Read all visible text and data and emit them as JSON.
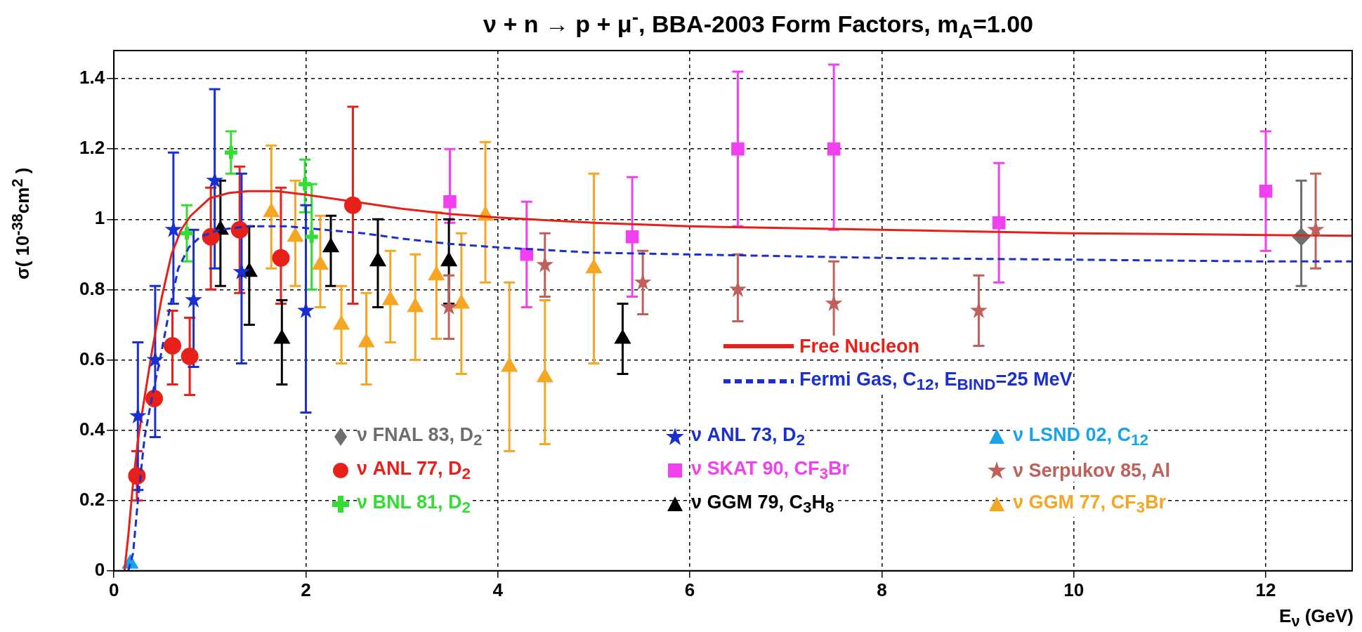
{
  "chart_data": {
    "type": "scatter",
    "title": "ν + n → p + μ$^{-}$, BBA-2003 Form Factors, m$_{A}$=1.00",
    "xlabel": "E$_{ν}$ (GeV)",
    "ylabel": "σ( 10$^{-38}$cm$^{2}$ )",
    "xlim": [
      0,
      12.9
    ],
    "xticks": [
      0,
      2,
      4,
      6,
      8,
      10,
      12
    ],
    "ylim": [
      0,
      1.48
    ],
    "yticks": [
      0,
      0.2,
      0.4,
      0.6,
      0.8,
      1,
      1.2,
      1.4
    ],
    "grid": true,
    "legend": "bottom",
    "series": [
      {
        "name": "ν FNAL 83, D$_{2}$",
        "color": "#6e6e6e",
        "type": "scatter",
        "marker": "diamond",
        "x": [
          12.37
        ],
        "values": [
          0.95
        ],
        "errors": [
          [
            0.81,
            1.11
          ]
        ]
      },
      {
        "name": "ν ANL 77, D$_{2}$",
        "color": "#e8201a",
        "type": "scatter",
        "marker": "circle",
        "x": [
          0.24,
          0.42,
          0.61,
          0.79,
          1.01,
          1.31,
          1.74,
          2.49
        ],
        "values": [
          0.27,
          0.49,
          0.64,
          0.61,
          0.95,
          0.97,
          0.89,
          1.04
        ],
        "errors": [
          [
            0.2,
            0.34
          ],
          null,
          [
            0.53,
            0.74
          ],
          [
            0.5,
            0.72
          ],
          [
            0.8,
            1.09
          ],
          [
            0.79,
            1.15
          ],
          [
            0.76,
            1.09
          ],
          [
            0.76,
            1.32
          ]
        ]
      },
      {
        "name": "ν BNL 81, D$_{2}$",
        "color": "#33dd33",
        "type": "scatter",
        "marker": "cross",
        "x": [
          0.76,
          1.22,
          1.99,
          2.06
        ],
        "values": [
          0.96,
          1.19,
          1.1,
          0.95
        ],
        "errors": [
          [
            0.88,
            1.04
          ],
          [
            1.13,
            1.25
          ],
          [
            1.02,
            1.17
          ],
          [
            0.8,
            1.1
          ]
        ]
      },
      {
        "name": "ν ANL 73, D$_{2}$",
        "color": "#1a2fd0",
        "type": "scatter",
        "marker": "star",
        "x": [
          0.25,
          0.43,
          0.62,
          0.83,
          1.05,
          1.33,
          2.0
        ],
        "values": [
          0.44,
          0.6,
          0.97,
          0.77,
          1.11,
          0.85,
          0.74
        ],
        "errors": [
          [
            0.23,
            0.65
          ],
          [
            0.38,
            0.81
          ],
          [
            0.76,
            1.19
          ],
          [
            0.58,
            0.97
          ],
          [
            0.86,
            1.37
          ],
          [
            0.59,
            1.13
          ],
          [
            0.45,
            1.04
          ]
        ]
      },
      {
        "name": "ν SKAT 90, CF$_{3}$Br",
        "color": "#f040f0",
        "type": "scatter",
        "marker": "square",
        "x": [
          3.5,
          4.3,
          5.4,
          6.5,
          7.5,
          9.22,
          12
        ],
        "values": [
          1.05,
          0.9,
          0.95,
          1.2,
          1.2,
          0.99,
          1.08
        ],
        "errors": [
          [
            0.99,
            1.2
          ],
          [
            0.75,
            1.05
          ],
          [
            0.78,
            1.12
          ],
          [
            0.98,
            1.42
          ],
          [
            0.97,
            1.44
          ],
          [
            0.82,
            1.16
          ],
          [
            0.91,
            1.25
          ]
        ]
      },
      {
        "name": "ν GGM 79, C$_{3}$H$_{8}$",
        "color": "#000000",
        "type": "scatter",
        "marker": "triangle",
        "x": [
          1.11,
          1.41,
          1.75,
          2.26,
          2.75,
          3.49,
          5.3
        ],
        "values": [
          0.97,
          0.85,
          0.66,
          0.92,
          0.88,
          0.88,
          0.66
        ],
        "errors": [
          [
            0.81,
            1.11
          ],
          [
            0.7,
            0.98
          ],
          [
            0.53,
            0.77
          ],
          [
            0.81,
            1.01
          ],
          [
            0.75,
            1.0
          ],
          [
            0.76,
            1.0
          ],
          [
            0.56,
            0.76
          ]
        ]
      },
      {
        "name": "ν LSND 02, C$_{12}$",
        "color": "#1aa3e8",
        "type": "scatter",
        "marker": "triangle",
        "x": [
          0.17
        ],
        "values": [
          0.02
        ]
      },
      {
        "name": "ν Serpukov 85, Al",
        "color": "#c0605a",
        "type": "scatter",
        "marker": "star",
        "x": [
          3.49,
          4.49,
          5.51,
          6.5,
          7.5,
          9.01,
          12.52
        ],
        "values": [
          0.75,
          0.87,
          0.82,
          0.8,
          0.76,
          0.74,
          0.97
        ],
        "errors": [
          [
            0.66,
            0.84
          ],
          [
            0.78,
            0.96
          ],
          [
            0.73,
            0.91
          ],
          [
            0.71,
            0.9
          ],
          [
            0.64,
            0.88
          ],
          [
            0.64,
            0.84
          ],
          [
            0.86,
            1.13
          ]
        ]
      },
      {
        "name": "ν GGM 77, CF$_{3}$Br",
        "color": "#f5a623",
        "type": "scatter",
        "marker": "triangle",
        "x": [
          1.64,
          1.89,
          2.15,
          2.37,
          2.63,
          2.88,
          3.14,
          3.36,
          3.62,
          3.87,
          4.12,
          4.49,
          5.0
        ],
        "values": [
          1.02,
          0.95,
          0.87,
          0.7,
          0.65,
          0.77,
          0.75,
          0.84,
          0.76,
          1.01,
          0.58,
          0.55,
          0.86
        ],
        "errors": [
          [
            0.86,
            1.21
          ],
          [
            0.81,
            1.11
          ],
          [
            0.75,
            1.01
          ],
          [
            0.59,
            0.81
          ],
          [
            0.53,
            0.79
          ],
          [
            0.65,
            0.91
          ],
          [
            0.6,
            0.9
          ],
          [
            0.66,
            1.02
          ],
          [
            0.56,
            0.96
          ],
          [
            0.82,
            1.22
          ],
          [
            0.34,
            0.82
          ],
          [
            0.36,
            0.77
          ],
          [
            0.59,
            1.13
          ]
        ]
      },
      {
        "name": "Free Nucleon",
        "color": "#e8201a",
        "type": "line",
        "marker": "none",
        "line_style": "solid",
        "x": [
          0.11,
          0.15,
          0.2,
          0.25,
          0.3,
          0.4,
          0.5,
          0.6,
          0.7,
          0.8,
          1.0,
          1.2,
          1.4,
          1.7,
          2.0,
          2.5,
          3,
          3.5,
          4,
          5,
          6,
          7,
          8,
          9,
          10,
          11,
          12,
          12.9
        ],
        "values": [
          0,
          0.1,
          0.25,
          0.37,
          0.46,
          0.63,
          0.78,
          0.9,
          0.97,
          1.01,
          1.06,
          1.075,
          1.08,
          1.08,
          1.07,
          1.05,
          1.03,
          1.015,
          1.005,
          0.99,
          0.98,
          0.975,
          0.97,
          0.965,
          0.96,
          0.958,
          0.955,
          0.953
        ]
      },
      {
        "name": "Fermi Gas, C$_{12}$, E$_{BIND}$=25 MeV",
        "color": "#1a2fd0",
        "type": "line",
        "marker": "none",
        "line_style": "dashed",
        "x": [
          0.15,
          0.2,
          0.25,
          0.32,
          0.4,
          0.48,
          0.57,
          0.67,
          0.78,
          0.9,
          1.1,
          1.4,
          1.8,
          2.2,
          2.6,
          3,
          3.5,
          4,
          5,
          6,
          7,
          8,
          10,
          12,
          12.9
        ],
        "values": [
          0,
          0.05,
          0.2,
          0.38,
          0.5,
          0.6,
          0.73,
          0.86,
          0.92,
          0.95,
          0.97,
          0.98,
          0.98,
          0.97,
          0.96,
          0.945,
          0.93,
          0.92,
          0.905,
          0.9,
          0.895,
          0.89,
          0.885,
          0.88,
          0.88
        ]
      }
    ]
  }
}
